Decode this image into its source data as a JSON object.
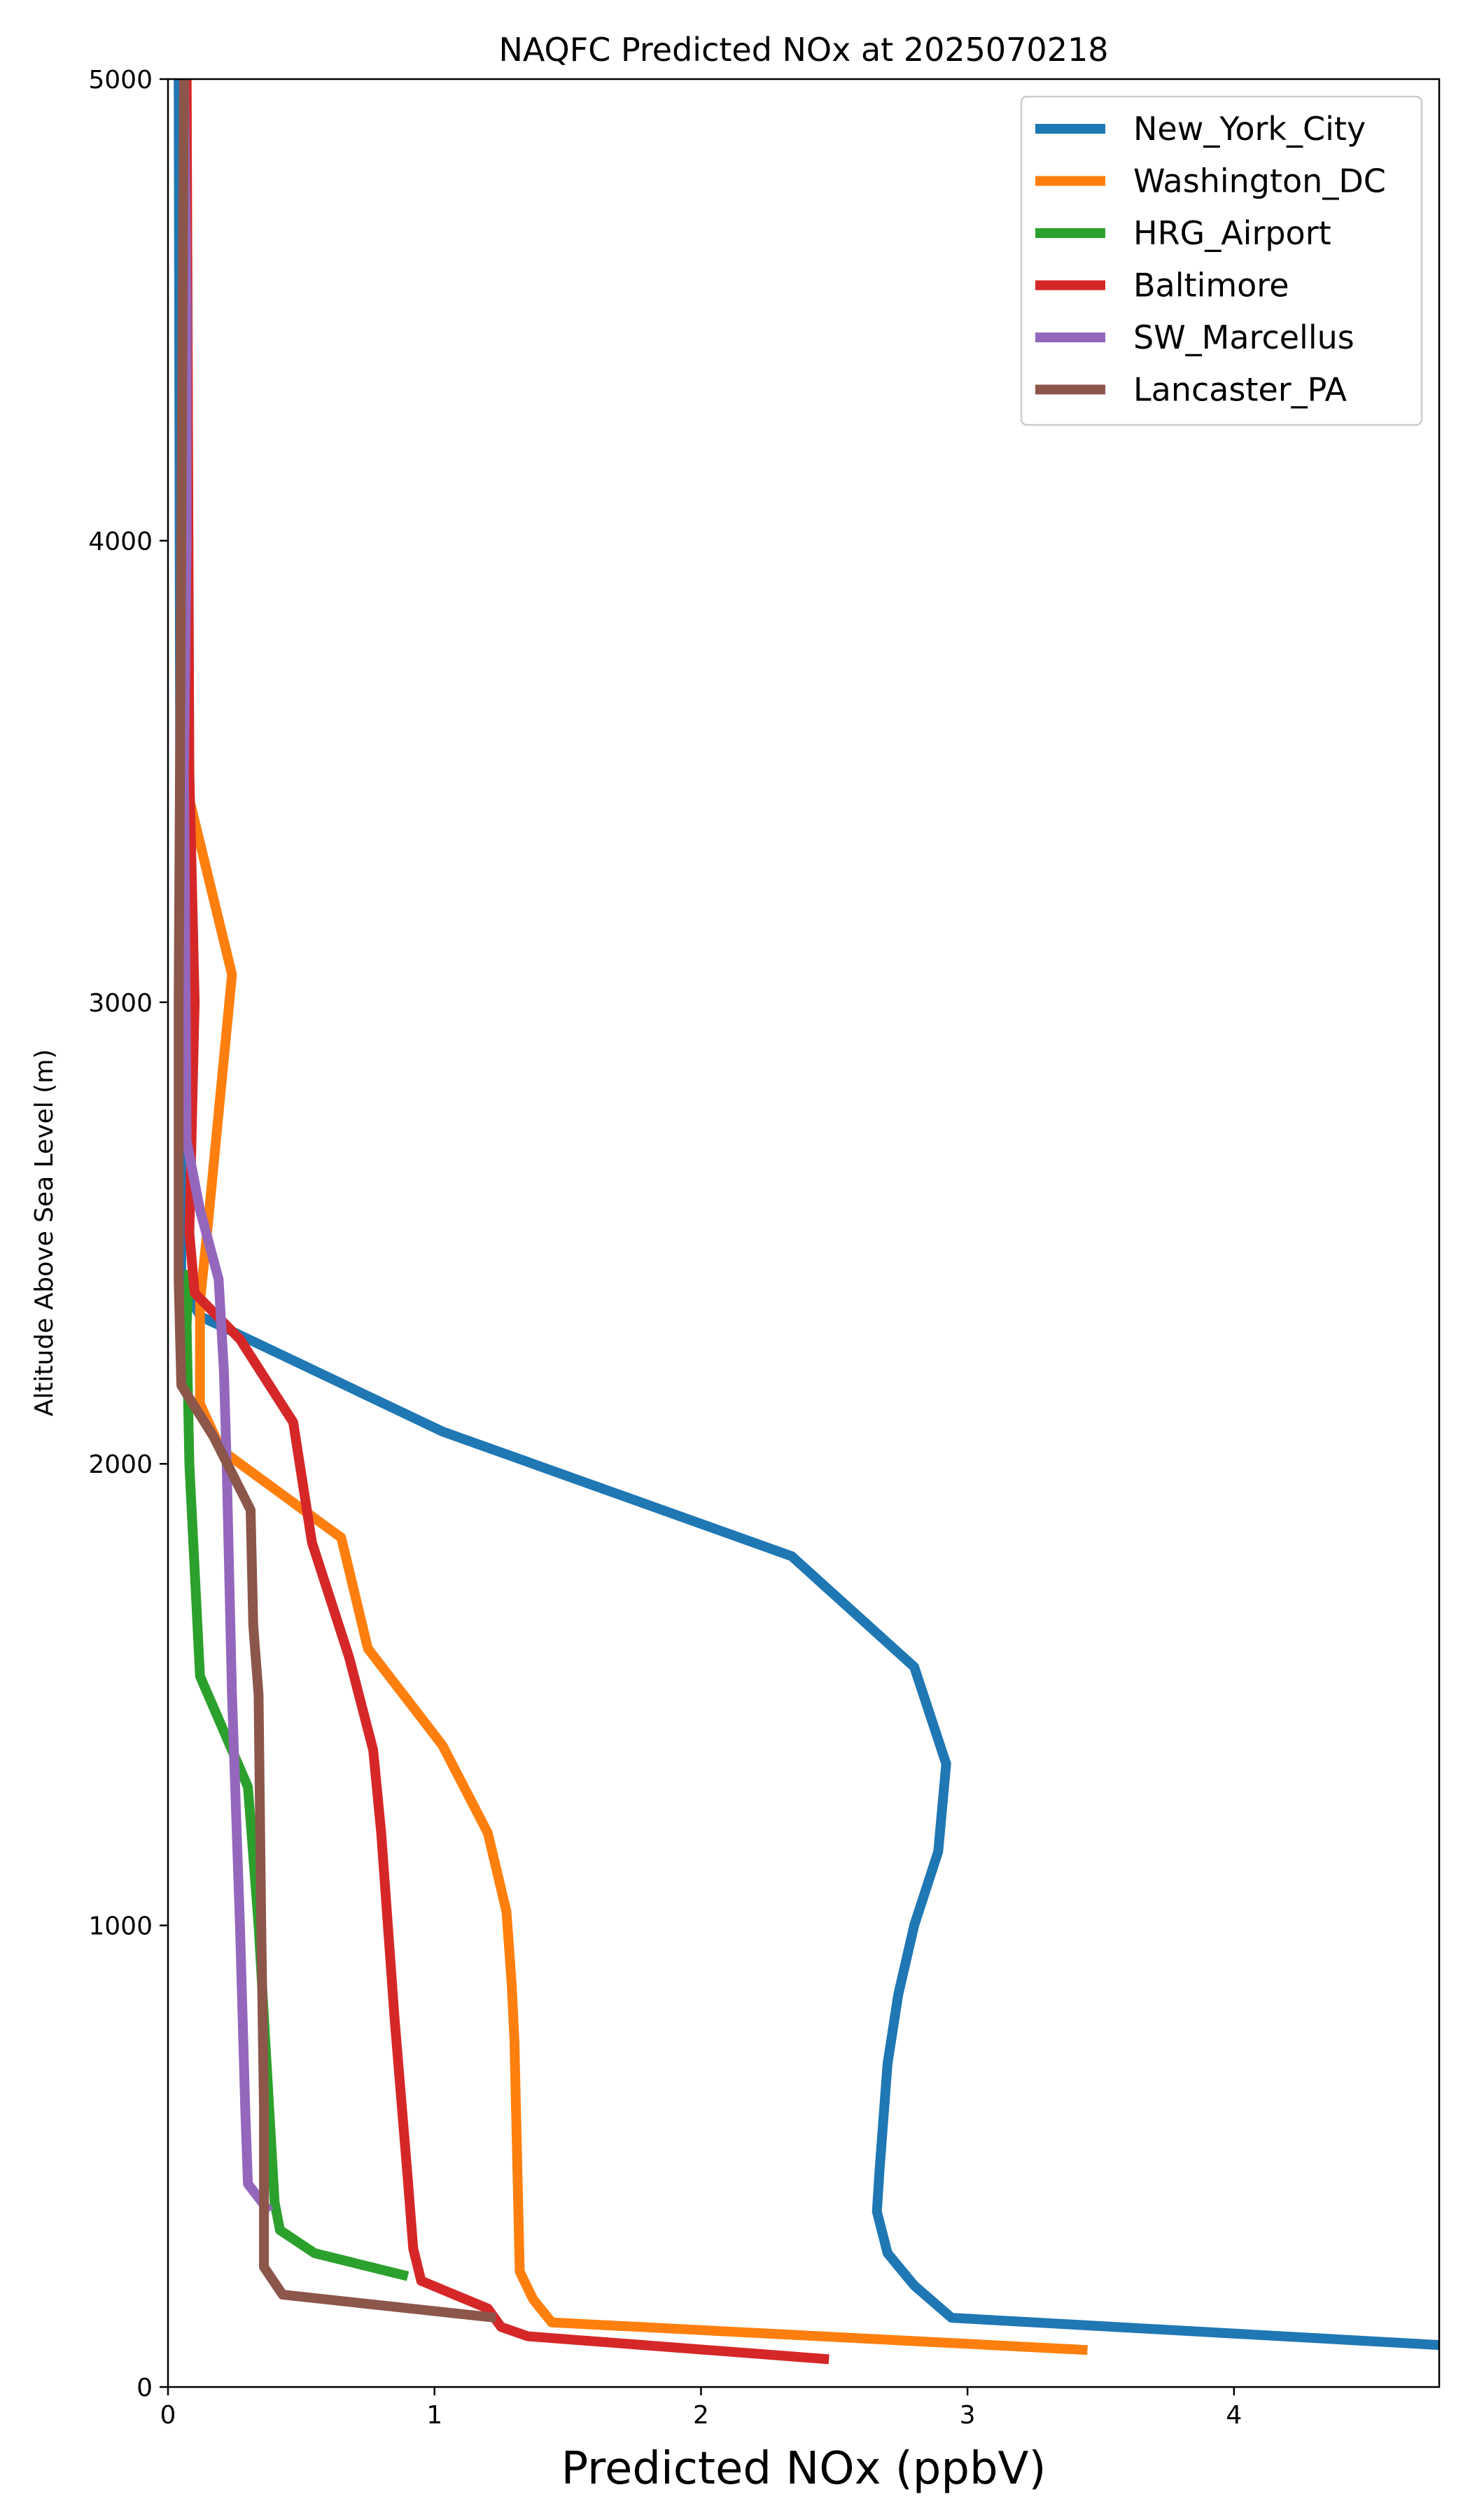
{
  "chart_data": {
    "type": "line",
    "title": "NAQFC Predicted NOx at 2025070218",
    "xlabel": "Predicted NOx (ppbV)",
    "ylabel": "Altitude Above Sea Level (m)",
    "xlim": [
      0,
      4.77
    ],
    "ylim": [
      0,
      5000
    ],
    "xticks": [
      0,
      1,
      2,
      3,
      4
    ],
    "yticks": [
      0,
      1000,
      2000,
      3000,
      4000,
      5000
    ],
    "grid": false,
    "legend_position": "upper right",
    "series": [
      {
        "name": "New_York_City",
        "color": "#1f77b4",
        "x": [
          4.8,
          2.94,
          2.8,
          2.7,
          2.66,
          2.67,
          2.7,
          2.74,
          2.8,
          2.89,
          2.92,
          2.8,
          2.34,
          1.03,
          0.12,
          0.05,
          0.04
        ],
        "y": [
          90,
          150,
          220,
          290,
          380,
          470,
          700,
          850,
          1000,
          1160,
          1350,
          1560,
          1800,
          2070,
          2320,
          2400,
          5000
        ]
      },
      {
        "name": "Washington_DC",
        "color": "#ff7f0e",
        "x": [
          3.45,
          1.44,
          1.37,
          1.32,
          1.31,
          1.3,
          1.29,
          1.27,
          1.2,
          1.03,
          0.75,
          0.65,
          0.2,
          0.12,
          0.12,
          0.15,
          0.18,
          0.24,
          0.08,
          0.07
        ],
        "y": [
          80,
          140,
          190,
          250,
          500,
          750,
          870,
          1030,
          1200,
          1390,
          1600,
          1840,
          2030,
          2130,
          2350,
          2520,
          2700,
          3060,
          3440,
          5000
        ]
      },
      {
        "name": "HRG_Airport",
        "color": "#2ca02c",
        "x": [
          0.9,
          0.55,
          0.42,
          0.4,
          0.37,
          0.34,
          0.3,
          0.12,
          0.08,
          0.07,
          0.08
        ],
        "y": [
          240,
          290,
          340,
          400,
          700,
          1000,
          1300,
          1540,
          2000,
          2300,
          2420
        ]
      },
      {
        "name": "Baltimore",
        "color": "#d62728",
        "x": [
          2.48,
          1.35,
          1.25,
          1.2,
          0.95,
          0.92,
          0.9,
          0.85,
          0.8,
          0.77,
          0.68,
          0.54,
          0.47,
          0.27,
          0.1,
          0.08,
          0.1,
          0.08,
          0.07
        ],
        "y": [
          60,
          110,
          130,
          170,
          230,
          300,
          450,
          800,
          1200,
          1380,
          1580,
          1830,
          2090,
          2270,
          2370,
          2500,
          3000,
          3500,
          5000
        ]
      },
      {
        "name": "SW_Marcellus",
        "color": "#9467bd",
        "x": [
          0.38,
          0.3,
          0.29,
          0.27,
          0.24,
          0.22,
          0.21,
          0.19,
          0.12,
          0.07,
          0.06,
          0.07,
          0.07,
          0.06
        ],
        "y": [
          380,
          440,
          600,
          1000,
          1500,
          2000,
          2200,
          2400,
          2550,
          2700,
          3500,
          4000,
          4500,
          5000
        ]
      },
      {
        "name": "Lancaster_PA",
        "color": "#8c564b",
        "x": [
          1.23,
          0.43,
          0.36,
          0.36,
          0.35,
          0.34,
          0.32,
          0.31,
          0.17,
          0.05,
          0.04,
          0.04,
          0.06
        ],
        "y": [
          150,
          200,
          260,
          600,
          1000,
          1500,
          1650,
          1900,
          2060,
          2170,
          2400,
          3000,
          5000
        ]
      }
    ]
  }
}
